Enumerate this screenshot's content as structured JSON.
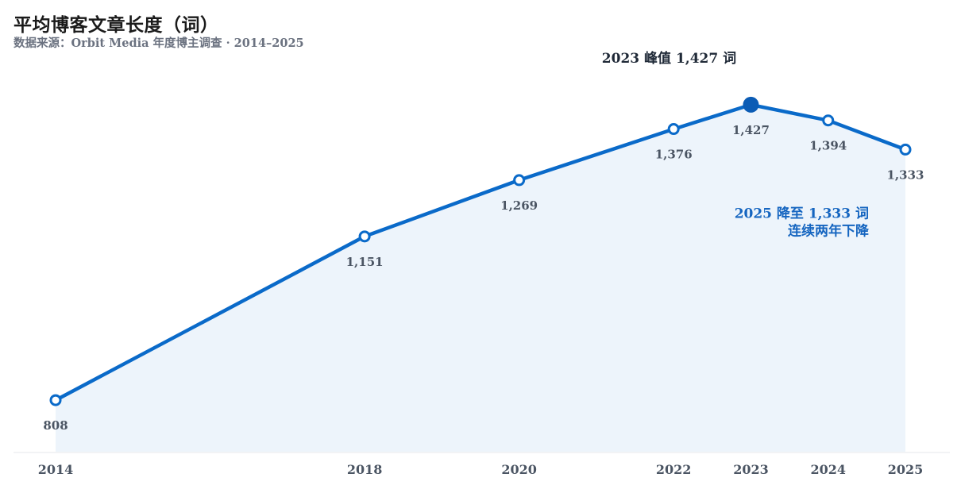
{
  "chart_data": {
    "type": "line",
    "title": "平均博客文章长度（词）",
    "subtitle": "数据来源：Orbit Media 年度博主调查 · 2014–2025",
    "xlabel": "",
    "ylabel": "",
    "x": [
      2014,
      2018,
      2020,
      2022,
      2023,
      2024,
      2025
    ],
    "values": [
      808,
      1151,
      1269,
      1376,
      1427,
      1394,
      1333
    ],
    "data_labels": [
      "808",
      "1,151",
      "1,269",
      "1,376",
      "1,427",
      "1,394",
      "1,333"
    ],
    "x_tick_labels": [
      "2014",
      "2018",
      "2020",
      "2022",
      "2023",
      "2024",
      "2025"
    ],
    "xlim": [
      2014,
      2025
    ],
    "ylim": [
      700,
      1500
    ],
    "grid": false,
    "legend": "none",
    "highlight_index": 4,
    "annotations": [
      {
        "text": "2023 峰值 1,427 词",
        "x": 2023,
        "y": 1427
      },
      {
        "text": [
          "2025 降至 1,333 词",
          "连续两年下降"
        ],
        "x": 2025,
        "y": 1333
      }
    ],
    "colors": {
      "line": "#0a6ac9",
      "area": "#edf4fb",
      "highlight": "#0b5cb5",
      "axis": "#e5e7eb"
    }
  }
}
